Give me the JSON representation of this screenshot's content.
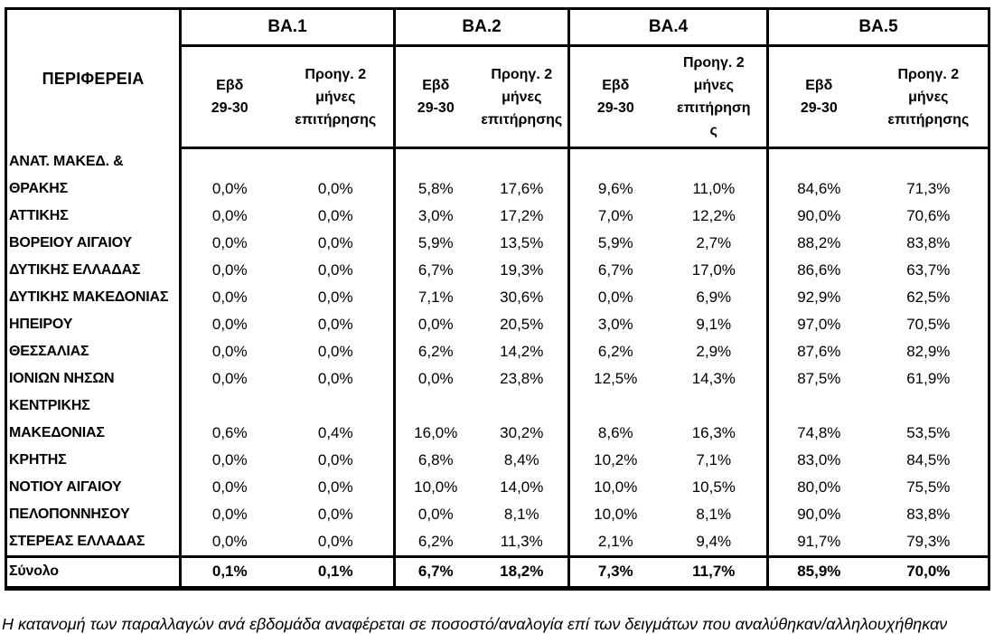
{
  "table": {
    "corner_header": "ΠΕΡΙΦΕΡΕΙΑ",
    "groups": [
      {
        "label": "BA.1",
        "sub": [
          "Εβδ\n29-30",
          "Προηγ. 2\nμήνες\nεπιτήρησης"
        ]
      },
      {
        "label": "BA.2",
        "sub": [
          "Εβδ\n29-30",
          "Προηγ. 2\nμήνες\nεπιτήρησης"
        ]
      },
      {
        "label": "BA.4",
        "sub": [
          "Εβδ\n29-30",
          "Προηγ. 2\nμήνες\nεπιτήρηση\nς"
        ]
      },
      {
        "label": "BA.5",
        "sub": [
          "Εβδ\n29-30",
          "Προηγ. 2\nμήνες\nεπιτήρησης"
        ]
      }
    ],
    "rows": [
      {
        "region": "ΑΝΑΤ. ΜΑΚΕΔ. & ΘΡΑΚΗΣ",
        "values": [
          "0,0%",
          "0,0%",
          "5,8%",
          "17,6%",
          "9,6%",
          "11,0%",
          "84,6%",
          "71,3%"
        ]
      },
      {
        "region": "ΑΤΤΙΚΗΣ",
        "values": [
          "0,0%",
          "0,0%",
          "3,0%",
          "17,2%",
          "7,0%",
          "12,2%",
          "90,0%",
          "70,6%"
        ]
      },
      {
        "region": "ΒΟΡΕΙΟΥ ΑΙΓΑΙΟΥ",
        "values": [
          "0,0%",
          "0,0%",
          "5,9%",
          "13,5%",
          "5,9%",
          "2,7%",
          "88,2%",
          "83,8%"
        ]
      },
      {
        "region": "ΔΥΤΙΚΗΣ ΕΛΛΑΔΑΣ",
        "values": [
          "0,0%",
          "0,0%",
          "6,7%",
          "19,3%",
          "6,7%",
          "17,0%",
          "86,6%",
          "63,7%"
        ]
      },
      {
        "region": "ΔΥΤΙΚΗΣ ΜΑΚΕΔΟΝΙΑΣ",
        "values": [
          "0,0%",
          "0,0%",
          "7,1%",
          "30,6%",
          "0,0%",
          "6,9%",
          "92,9%",
          "62,5%"
        ]
      },
      {
        "region": "ΗΠΕΙΡΟΥ",
        "values": [
          "0,0%",
          "0,0%",
          "0,0%",
          "20,5%",
          "3,0%",
          "9,1%",
          "97,0%",
          "70,5%"
        ]
      },
      {
        "region": "ΘΕΣΣΑΛΙΑΣ",
        "values": [
          "0,0%",
          "0,0%",
          "6,2%",
          "14,2%",
          "6,2%",
          "2,9%",
          "87,6%",
          "82,9%"
        ]
      },
      {
        "region": "ΙΟΝΙΩΝ ΝΗΣΩΝ",
        "values": [
          "0,0%",
          "0,0%",
          "0,0%",
          "23,8%",
          "12,5%",
          "14,3%",
          "87,5%",
          "61,9%"
        ]
      },
      {
        "region": "ΚΕΝΤΡΙΚΗΣ ΜΑΚΕΔΟΝΙΑΣ",
        "values": [
          "0,6%",
          "0,4%",
          "16,0%",
          "30,2%",
          "8,6%",
          "16,3%",
          "74,8%",
          "53,5%"
        ]
      },
      {
        "region": "ΚΡΗΤΗΣ",
        "values": [
          "0,0%",
          "0,0%",
          "6,8%",
          "8,4%",
          "10,2%",
          "7,1%",
          "83,0%",
          "84,5%"
        ]
      },
      {
        "region": "ΝΟΤΙΟΥ ΑΙΓΑΙΟΥ",
        "values": [
          "0,0%",
          "0,0%",
          "10,0%",
          "14,0%",
          "10,0%",
          "10,5%",
          "80,0%",
          "75,5%"
        ]
      },
      {
        "region": "ΠΕΛΟΠΟΝΝΗΣΟΥ",
        "values": [
          "0,0%",
          "0,0%",
          "0,0%",
          "8,1%",
          "10,0%",
          "8,1%",
          "90,0%",
          "83,8%"
        ]
      },
      {
        "region": "ΣΤΕΡΕΑΣ ΕΛΛΑΔΑΣ",
        "values": [
          "0,0%",
          "0,0%",
          "6,2%",
          "11,3%",
          "2,1%",
          "9,4%",
          "91,7%",
          "79,3%"
        ]
      }
    ],
    "total": {
      "label": "Σύνολο",
      "values": [
        "0,1%",
        "0,1%",
        "6,7%",
        "18,2%",
        "7,3%",
        "11,7%",
        "85,9%",
        "70,0%"
      ]
    }
  },
  "footnote": "Η κατανομή των παραλλαγών ανά εβδομάδα αναφέρεται σε ποσοστό/αναλογία επί των δειγμάτων που αναλύθηκαν/αλληλουχήθηκαν"
}
